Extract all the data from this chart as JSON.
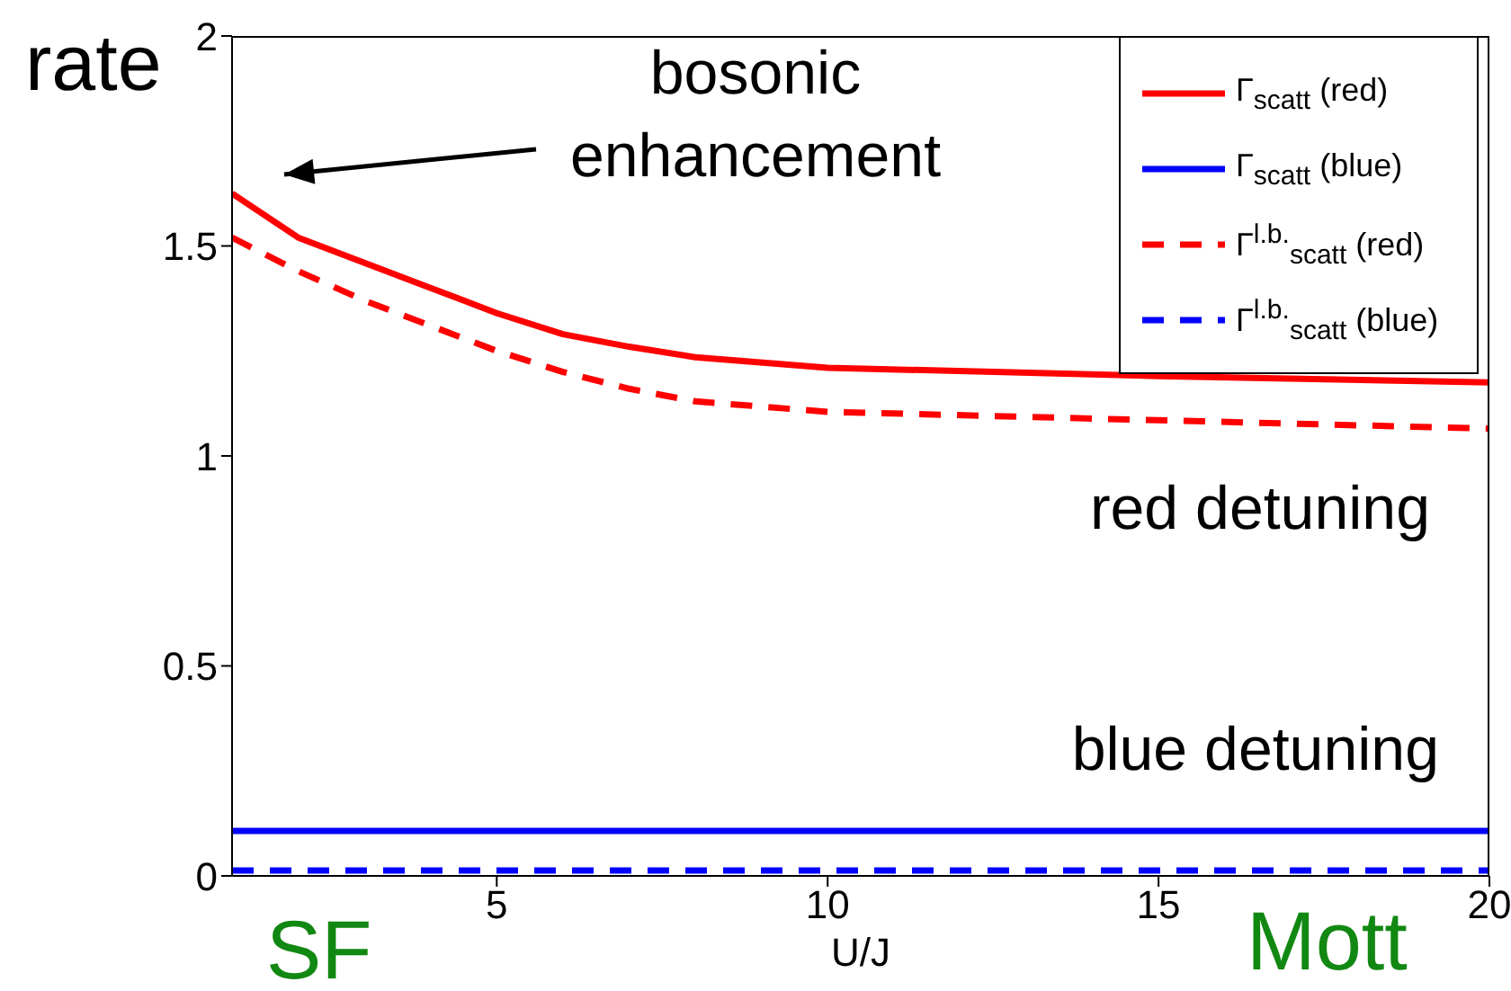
{
  "chart_data": {
    "type": "line",
    "ylabel": "rate",
    "xlabel": "U/J",
    "x": [
      1,
      2,
      3,
      4,
      5,
      6,
      7,
      8,
      10,
      15,
      20
    ],
    "series": [
      {
        "name": "Γ$_{scatt}$ (red)",
        "color": "#ff0000",
        "line_style": "solid",
        "values": [
          1.625,
          1.52,
          1.46,
          1.4,
          1.34,
          1.29,
          1.26,
          1.235,
          1.21,
          1.19,
          1.175
        ]
      },
      {
        "name": "Γ$_{scatt}$ (blue)",
        "color": "#0000ff",
        "line_style": "solid",
        "values": [
          0.107,
          0.107,
          0.107,
          0.107,
          0.107,
          0.107,
          0.107,
          0.107,
          0.107,
          0.107,
          0.107
        ]
      },
      {
        "name": "Γ$^{l.b.}$$_{scatt}$ (red)",
        "color": "#ff0000",
        "line_style": "dashed",
        "values": [
          1.52,
          1.44,
          1.37,
          1.31,
          1.25,
          1.2,
          1.16,
          1.13,
          1.105,
          1.085,
          1.065
        ]
      },
      {
        "name": "Γ$^{l.b.}$$_{scatt}$ (blue)",
        "color": "#0000ff",
        "line_style": "dashed",
        "values": [
          0.013,
          0.013,
          0.013,
          0.013,
          0.013,
          0.013,
          0.013,
          0.013,
          0.013,
          0.013,
          0.013
        ]
      }
    ],
    "xlim": [
      1,
      20
    ],
    "xticks": [
      5,
      10,
      15,
      20
    ],
    "ylim": [
      0,
      2
    ],
    "yticks": [
      0,
      0.5,
      1,
      1.5,
      2
    ],
    "annotations": [
      "bosonic enhancement",
      "red detuning",
      "blue detuning",
      "SF",
      "Mott"
    ],
    "legend": "top right",
    "marker": "none",
    "grid": false
  }
}
